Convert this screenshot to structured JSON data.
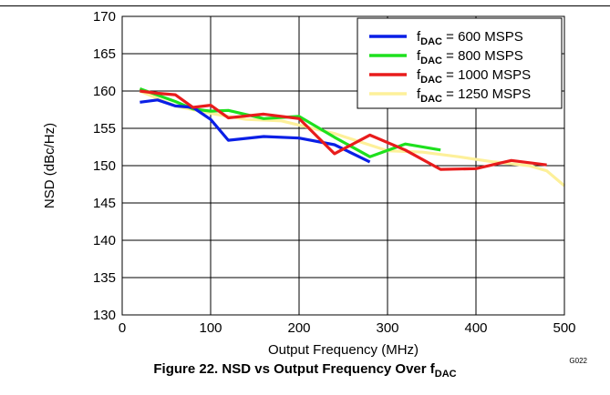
{
  "figure": {
    "caption_main": "Figure 22. NSD vs Output Frequency Over f",
    "caption_sub": "DAC",
    "code": "G022"
  },
  "chart_data": {
    "type": "line",
    "xlabel": "Output Frequency (MHz)",
    "ylabel": "NSD (dBc/Hz)",
    "xlim": [
      0,
      500
    ],
    "ylim": [
      130,
      170
    ],
    "xticks": [
      0,
      100,
      200,
      300,
      400,
      500
    ],
    "yticks": [
      130,
      135,
      140,
      145,
      150,
      155,
      160,
      165,
      170
    ],
    "grid": true,
    "legend_position": "top-right",
    "series": [
      {
        "label_prefix": "f",
        "label_sub": "DAC",
        "label_suffix": " = 600 MSPS",
        "color": "#0a1fe6",
        "points": [
          [
            20,
            158.5
          ],
          [
            40,
            158.8
          ],
          [
            60,
            158.0
          ],
          [
            80,
            157.8
          ],
          [
            100,
            156.2
          ],
          [
            120,
            153.4
          ],
          [
            160,
            153.9
          ],
          [
            200,
            153.7
          ],
          [
            240,
            152.8
          ],
          [
            280,
            150.5
          ]
        ]
      },
      {
        "label_prefix": "f",
        "label_sub": "DAC",
        "label_suffix": " = 800 MSPS",
        "color": "#1ee01e",
        "points": [
          [
            20,
            160.3
          ],
          [
            60,
            158.6
          ],
          [
            80,
            157.6
          ],
          [
            100,
            157.3
          ],
          [
            120,
            157.4
          ],
          [
            160,
            156.3
          ],
          [
            200,
            156.6
          ],
          [
            240,
            153.8
          ],
          [
            280,
            151.2
          ],
          [
            320,
            152.9
          ],
          [
            360,
            152.1
          ]
        ]
      },
      {
        "label_prefix": "f",
        "label_sub": "DAC",
        "label_suffix": " = 1000 MSPS",
        "color": "#e81c1c",
        "points": [
          [
            20,
            160.0
          ],
          [
            40,
            159.7
          ],
          [
            60,
            159.5
          ],
          [
            80,
            157.8
          ],
          [
            100,
            158.1
          ],
          [
            120,
            156.4
          ],
          [
            160,
            156.9
          ],
          [
            200,
            156.3
          ],
          [
            240,
            151.6
          ],
          [
            280,
            154.1
          ],
          [
            320,
            152.1
          ],
          [
            360,
            149.5
          ],
          [
            400,
            149.6
          ],
          [
            440,
            150.7
          ],
          [
            480,
            150.1
          ]
        ]
      },
      {
        "label_prefix": "f",
        "label_sub": "DAC",
        "label_suffix": " = 1250 MSPS",
        "color": "#fdf09a",
        "points": [
          [
            20,
            160.0
          ],
          [
            60,
            158.0
          ],
          [
            100,
            157.0
          ],
          [
            140,
            156.2
          ],
          [
            180,
            156.0
          ],
          [
            240,
            154.3
          ],
          [
            300,
            152.0
          ],
          [
            340,
            151.8
          ],
          [
            380,
            151.2
          ],
          [
            420,
            150.5
          ],
          [
            460,
            150.0
          ],
          [
            480,
            149.3
          ],
          [
            500,
            147.3
          ]
        ]
      }
    ]
  }
}
